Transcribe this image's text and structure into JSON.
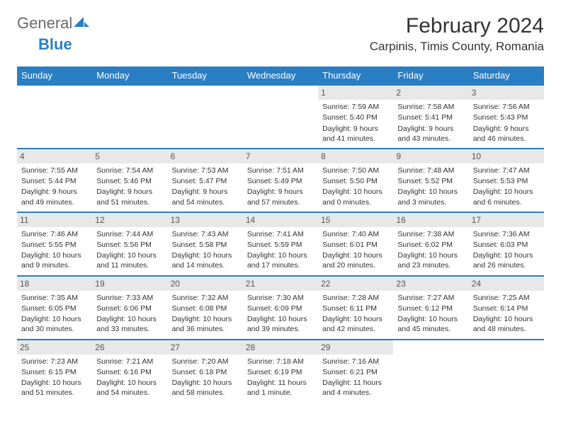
{
  "logo": {
    "general": "General",
    "blue": "Blue"
  },
  "title": "February 2024",
  "location": "Carpinis, Timis County, Romania",
  "colors": {
    "header_bg": "#2a7ec4",
    "header_fg": "#ffffff",
    "daynum_bg": "#e8e8e8",
    "border": "#2a7ec4",
    "text": "#333333"
  },
  "weekdays": [
    "Sunday",
    "Monday",
    "Tuesday",
    "Wednesday",
    "Thursday",
    "Friday",
    "Saturday"
  ],
  "weeks": [
    [
      {
        "empty": true
      },
      {
        "empty": true
      },
      {
        "empty": true
      },
      {
        "empty": true
      },
      {
        "day": "1",
        "sunrise": "Sunrise: 7:59 AM",
        "sunset": "Sunset: 5:40 PM",
        "daylight": "Daylight: 9 hours and 41 minutes."
      },
      {
        "day": "2",
        "sunrise": "Sunrise: 7:58 AM",
        "sunset": "Sunset: 5:41 PM",
        "daylight": "Daylight: 9 hours and 43 minutes."
      },
      {
        "day": "3",
        "sunrise": "Sunrise: 7:56 AM",
        "sunset": "Sunset: 5:43 PM",
        "daylight": "Daylight: 9 hours and 46 minutes."
      }
    ],
    [
      {
        "day": "4",
        "sunrise": "Sunrise: 7:55 AM",
        "sunset": "Sunset: 5:44 PM",
        "daylight": "Daylight: 9 hours and 49 minutes."
      },
      {
        "day": "5",
        "sunrise": "Sunrise: 7:54 AM",
        "sunset": "Sunset: 5:46 PM",
        "daylight": "Daylight: 9 hours and 51 minutes."
      },
      {
        "day": "6",
        "sunrise": "Sunrise: 7:53 AM",
        "sunset": "Sunset: 5:47 PM",
        "daylight": "Daylight: 9 hours and 54 minutes."
      },
      {
        "day": "7",
        "sunrise": "Sunrise: 7:51 AM",
        "sunset": "Sunset: 5:49 PM",
        "daylight": "Daylight: 9 hours and 57 minutes."
      },
      {
        "day": "8",
        "sunrise": "Sunrise: 7:50 AM",
        "sunset": "Sunset: 5:50 PM",
        "daylight": "Daylight: 10 hours and 0 minutes."
      },
      {
        "day": "9",
        "sunrise": "Sunrise: 7:48 AM",
        "sunset": "Sunset: 5:52 PM",
        "daylight": "Daylight: 10 hours and 3 minutes."
      },
      {
        "day": "10",
        "sunrise": "Sunrise: 7:47 AM",
        "sunset": "Sunset: 5:53 PM",
        "daylight": "Daylight: 10 hours and 6 minutes."
      }
    ],
    [
      {
        "day": "11",
        "sunrise": "Sunrise: 7:46 AM",
        "sunset": "Sunset: 5:55 PM",
        "daylight": "Daylight: 10 hours and 9 minutes."
      },
      {
        "day": "12",
        "sunrise": "Sunrise: 7:44 AM",
        "sunset": "Sunset: 5:56 PM",
        "daylight": "Daylight: 10 hours and 11 minutes."
      },
      {
        "day": "13",
        "sunrise": "Sunrise: 7:43 AM",
        "sunset": "Sunset: 5:58 PM",
        "daylight": "Daylight: 10 hours and 14 minutes."
      },
      {
        "day": "14",
        "sunrise": "Sunrise: 7:41 AM",
        "sunset": "Sunset: 5:59 PM",
        "daylight": "Daylight: 10 hours and 17 minutes."
      },
      {
        "day": "15",
        "sunrise": "Sunrise: 7:40 AM",
        "sunset": "Sunset: 6:01 PM",
        "daylight": "Daylight: 10 hours and 20 minutes."
      },
      {
        "day": "16",
        "sunrise": "Sunrise: 7:38 AM",
        "sunset": "Sunset: 6:02 PM",
        "daylight": "Daylight: 10 hours and 23 minutes."
      },
      {
        "day": "17",
        "sunrise": "Sunrise: 7:36 AM",
        "sunset": "Sunset: 6:03 PM",
        "daylight": "Daylight: 10 hours and 26 minutes."
      }
    ],
    [
      {
        "day": "18",
        "sunrise": "Sunrise: 7:35 AM",
        "sunset": "Sunset: 6:05 PM",
        "daylight": "Daylight: 10 hours and 30 minutes."
      },
      {
        "day": "19",
        "sunrise": "Sunrise: 7:33 AM",
        "sunset": "Sunset: 6:06 PM",
        "daylight": "Daylight: 10 hours and 33 minutes."
      },
      {
        "day": "20",
        "sunrise": "Sunrise: 7:32 AM",
        "sunset": "Sunset: 6:08 PM",
        "daylight": "Daylight: 10 hours and 36 minutes."
      },
      {
        "day": "21",
        "sunrise": "Sunrise: 7:30 AM",
        "sunset": "Sunset: 6:09 PM",
        "daylight": "Daylight: 10 hours and 39 minutes."
      },
      {
        "day": "22",
        "sunrise": "Sunrise: 7:28 AM",
        "sunset": "Sunset: 6:11 PM",
        "daylight": "Daylight: 10 hours and 42 minutes."
      },
      {
        "day": "23",
        "sunrise": "Sunrise: 7:27 AM",
        "sunset": "Sunset: 6:12 PM",
        "daylight": "Daylight: 10 hours and 45 minutes."
      },
      {
        "day": "24",
        "sunrise": "Sunrise: 7:25 AM",
        "sunset": "Sunset: 6:14 PM",
        "daylight": "Daylight: 10 hours and 48 minutes."
      }
    ],
    [
      {
        "day": "25",
        "sunrise": "Sunrise: 7:23 AM",
        "sunset": "Sunset: 6:15 PM",
        "daylight": "Daylight: 10 hours and 51 minutes."
      },
      {
        "day": "26",
        "sunrise": "Sunrise: 7:21 AM",
        "sunset": "Sunset: 6:16 PM",
        "daylight": "Daylight: 10 hours and 54 minutes."
      },
      {
        "day": "27",
        "sunrise": "Sunrise: 7:20 AM",
        "sunset": "Sunset: 6:18 PM",
        "daylight": "Daylight: 10 hours and 58 minutes."
      },
      {
        "day": "28",
        "sunrise": "Sunrise: 7:18 AM",
        "sunset": "Sunset: 6:19 PM",
        "daylight": "Daylight: 11 hours and 1 minute."
      },
      {
        "day": "29",
        "sunrise": "Sunrise: 7:16 AM",
        "sunset": "Sunset: 6:21 PM",
        "daylight": "Daylight: 11 hours and 4 minutes."
      },
      {
        "empty": true
      },
      {
        "empty": true
      }
    ]
  ]
}
